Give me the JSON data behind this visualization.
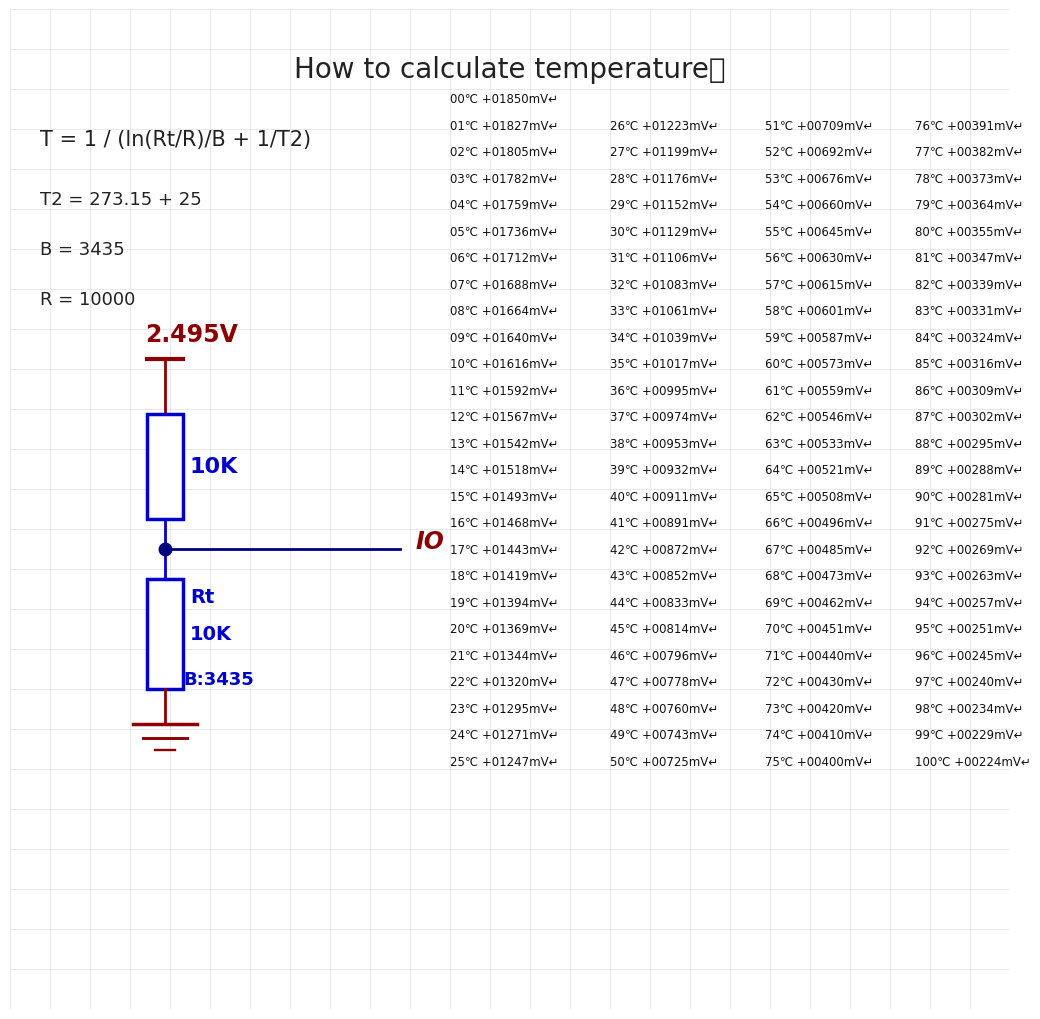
{
  "title": "How to calculate temperature！",
  "formula": "T = 1 / (ln(Rt/R)/B + 1/T2)",
  "params": [
    "T2 = 273.15 + 25",
    "B = 3435",
    "R = 10000"
  ],
  "voltage_label": "2.495V",
  "resistor1_label": "10K",
  "resistor2_labels": [
    "Rt",
    "10K",
    "B:3435"
  ],
  "io_label": "IO",
  "bg_color": "#ffffff",
  "dark_red": "#8B0000",
  "blue": "#0000CC",
  "navy": "#000080",
  "text_color": "#222222",
  "grid_color": "#e0e0e0",
  "table_data": [
    [
      "00℃ +01850mV↵",
      null,
      null,
      null
    ],
    [
      "01℃ +01827mV↵",
      "26℃ +01223mV↵",
      "51℃ +00709mV↵",
      "76℃ +00391mV↵"
    ],
    [
      "02℃ +01805mV↵",
      "27℃ +01199mV↵",
      "52℃ +00692mV↵",
      "77℃ +00382mV↵"
    ],
    [
      "03℃ +01782mV↵",
      "28℃ +01176mV↵",
      "53℃ +00676mV↵",
      "78℃ +00373mV↵"
    ],
    [
      "04℃ +01759mV↵",
      "29℃ +01152mV↵",
      "54℃ +00660mV↵",
      "79℃ +00364mV↵"
    ],
    [
      "05℃ +01736mV↵",
      "30℃ +01129mV↵",
      "55℃ +00645mV↵",
      "80℃ +00355mV↵"
    ],
    [
      "06℃ +01712mV↵",
      "31℃ +01106mV↵",
      "56℃ +00630mV↵",
      "81℃ +00347mV↵"
    ],
    [
      "07℃ +01688mV↵",
      "32℃ +01083mV↵",
      "57℃ +00615mV↵",
      "82℃ +00339mV↵"
    ],
    [
      "08℃ +01664mV↵",
      "33℃ +01061mV↵",
      "58℃ +00601mV↵",
      "83℃ +00331mV↵"
    ],
    [
      "09℃ +01640mV↵",
      "34℃ +01039mV↵",
      "59℃ +00587mV↵",
      "84℃ +00324mV↵"
    ],
    [
      "10℃ +01616mV↵",
      "35℃ +01017mV↵",
      "60℃ +00573mV↵",
      "85℃ +00316mV↵"
    ],
    [
      "11℃ +01592mV↵",
      "36℃ +00995mV↵",
      "61℃ +00559mV↵",
      "86℃ +00309mV↵"
    ],
    [
      "12℃ +01567mV↵",
      "37℃ +00974mV↵",
      "62℃ +00546mV↵",
      "87℃ +00302mV↵"
    ],
    [
      "13℃ +01542mV↵",
      "38℃ +00953mV↵",
      "63℃ +00533mV↵",
      "88℃ +00295mV↵"
    ],
    [
      "14℃ +01518mV↵",
      "39℃ +00932mV↵",
      "64℃ +00521mV↵",
      "89℃ +00288mV↵"
    ],
    [
      "15℃ +01493mV↵",
      "40℃ +00911mV↵",
      "65℃ +00508mV↵",
      "90℃ +00281mV↵"
    ],
    [
      "16℃ +01468mV↵",
      "41℃ +00891mV↵",
      "66℃ +00496mV↵",
      "91℃ +00275mV↵"
    ],
    [
      "17℃ +01443mV↵",
      "42℃ +00872mV↵",
      "67℃ +00485mV↵",
      "92℃ +00269mV↵"
    ],
    [
      "18℃ +01419mV↵",
      "43℃ +00852mV↵",
      "68℃ +00473mV↵",
      "93℃ +00263mV↵"
    ],
    [
      "19℃ +01394mV↵",
      "44℃ +00833mV↵",
      "69℃ +00462mV↵",
      "94℃ +00257mV↵"
    ],
    [
      "20℃ +01369mV↵",
      "45℃ +00814mV↵",
      "70℃ +00451mV↵",
      "95℃ +00251mV↵"
    ],
    [
      "21℃ +01344mV↵",
      "46℃ +00796mV↵",
      "71℃ +00440mV↵",
      "96℃ +00245mV↵"
    ],
    [
      "22℃ +01320mV↵",
      "47℃ +00778mV↵",
      "72℃ +00430mV↵",
      "97℃ +00240mV↵"
    ],
    [
      "23℃ +01295mV↵",
      "48℃ +00760mV↵",
      "73℃ +00420mV↵",
      "98℃ +00234mV↵"
    ],
    [
      "24℃ +01271mV↵",
      "49℃ +00743mV↵",
      "74℃ +00410mV↵",
      "99℃ +00229mV↵"
    ],
    [
      "25℃ +01247mV↵",
      "50℃ +00725mV↵",
      "75℃ +00400mV↵",
      "100℃ +00224mV↵"
    ]
  ]
}
